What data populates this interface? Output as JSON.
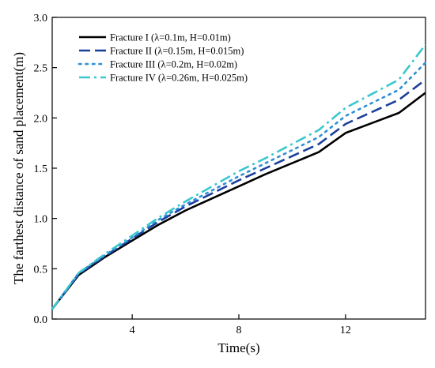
{
  "chart_data": {
    "type": "line",
    "title": "",
    "xlabel": "Time(s)",
    "ylabel": "The farthest distance of sand placement(m)",
    "xlim": [
      1,
      15
    ],
    "ylim": [
      0.0,
      3.0
    ],
    "x_ticks": [
      4,
      8,
      12
    ],
    "x_tick_labels": [
      "4",
      "8",
      "12"
    ],
    "y_ticks": [
      0.0,
      0.5,
      1.0,
      1.5,
      2.0,
      2.5,
      3.0
    ],
    "y_tick_labels": [
      "0.0",
      "0.5",
      "1.0",
      "1.5",
      "2.0",
      "2.5",
      "3.0"
    ],
    "grid": false,
    "legend_position": "top-left",
    "series": [
      {
        "name": "Fracture I (λ=0.1m, H=0.01m)",
        "color": "#000000",
        "dash": "solid",
        "x": [
          1,
          2,
          3,
          4,
          5,
          6,
          7,
          8,
          9,
          10,
          11,
          12,
          13,
          14,
          15
        ],
        "y": [
          0.1,
          0.44,
          0.62,
          0.78,
          0.94,
          1.08,
          1.2,
          1.32,
          1.44,
          1.55,
          1.66,
          1.85,
          1.95,
          2.05,
          2.25
        ]
      },
      {
        "name": "Fracture II (λ=0.15m, H=0.015m)",
        "color": "#1a3f9c",
        "dash": "dash",
        "x": [
          1,
          2,
          3,
          4,
          5,
          6,
          7,
          8,
          9,
          10,
          11,
          12,
          13,
          14,
          15
        ],
        "y": [
          0.1,
          0.45,
          0.63,
          0.8,
          0.97,
          1.12,
          1.25,
          1.38,
          1.5,
          1.62,
          1.74,
          1.94,
          2.06,
          2.18,
          2.38
        ]
      },
      {
        "name": "Fracture III (λ=0.2m, H=0.02m)",
        "color": "#2e8fd6",
        "dash": "dot",
        "x": [
          1,
          2,
          3,
          4,
          5,
          6,
          7,
          8,
          9,
          10,
          11,
          12,
          13,
          14,
          15
        ],
        "y": [
          0.1,
          0.46,
          0.64,
          0.81,
          0.99,
          1.14,
          1.28,
          1.42,
          1.55,
          1.68,
          1.81,
          2.02,
          2.15,
          2.28,
          2.55
        ]
      },
      {
        "name": "Fracture IV (λ=0.26m, H=0.025m)",
        "color": "#3cc7cf",
        "dash": "dashdot",
        "x": [
          1,
          2,
          3,
          4,
          5,
          6,
          7,
          8,
          9,
          10,
          11,
          12,
          13,
          14,
          15
        ],
        "y": [
          0.1,
          0.46,
          0.65,
          0.83,
          1.01,
          1.17,
          1.32,
          1.47,
          1.6,
          1.74,
          1.88,
          2.1,
          2.24,
          2.38,
          2.73
        ]
      }
    ]
  }
}
